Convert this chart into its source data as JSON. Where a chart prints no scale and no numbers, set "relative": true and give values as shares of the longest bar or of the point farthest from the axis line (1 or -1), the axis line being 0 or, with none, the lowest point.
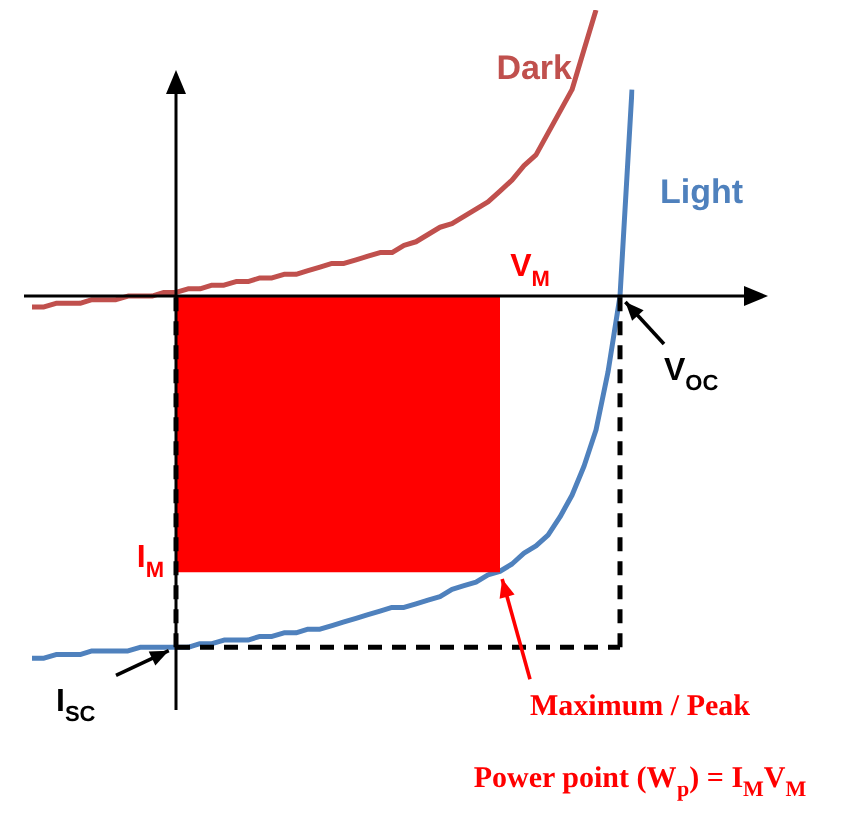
{
  "chart_data": {
    "type": "line",
    "relative": true,
    "legend": false,
    "marker": "none",
    "categories": [
      null,
      null,
      null,
      null,
      null,
      null,
      null,
      null,
      null,
      null,
      null,
      null,
      null,
      null,
      null,
      null,
      null,
      null,
      null,
      null,
      null,
      null,
      null,
      null,
      null,
      null,
      null,
      null,
      null,
      null,
      null,
      null,
      null,
      null,
      null,
      null,
      null,
      null,
      null,
      null,
      null,
      null,
      null,
      null,
      null,
      null,
      null,
      null,
      null,
      null,
      null
    ],
    "series": [
      {
        "name": "Dark",
        "color": "#c0504d",
        "values": [
          -0.03,
          -0.03,
          -0.02,
          -0.02,
          -0.02,
          -0.01,
          -0.01,
          -0.01,
          0,
          0,
          0,
          0.01,
          0.01,
          0.02,
          0.02,
          0.03,
          0.03,
          0.04,
          0.04,
          0.05,
          0.05,
          0.06,
          0.06,
          0.07,
          0.08,
          0.09,
          0.09,
          0.1,
          0.11,
          0.12,
          0.12,
          0.14,
          0.15,
          0.17,
          0.19,
          0.2,
          0.22,
          0.24,
          0.26,
          0.29,
          0.32,
          0.36,
          0.39,
          0.45,
          0.51,
          0.57,
          0.68,
          0.79,
          null,
          null,
          null
        ]
      },
      {
        "name": "Light",
        "color": "#4f81bd",
        "values": [
          -1,
          -1,
          -0.99,
          -0.99,
          -0.99,
          -0.98,
          -0.98,
          -0.98,
          -0.98,
          -0.97,
          -0.97,
          -0.97,
          -0.97,
          -0.97,
          -0.96,
          -0.96,
          -0.95,
          -0.95,
          -0.95,
          -0.94,
          -0.94,
          -0.93,
          -0.93,
          -0.92,
          -0.92,
          -0.91,
          -0.9,
          -0.89,
          -0.88,
          -0.87,
          -0.86,
          -0.86,
          -0.85,
          -0.84,
          -0.83,
          -0.81,
          -0.8,
          -0.79,
          -0.77,
          -0.76,
          -0.74,
          -0.71,
          -0.69,
          -0.66,
          -0.61,
          -0.55,
          -0.47,
          -0.37,
          -0.21,
          0,
          0.57
        ]
      },
      {
        "type": "area",
        "color": "#ff0000",
        "values": [
          null,
          null,
          null,
          null,
          null,
          null,
          null,
          null,
          null,
          null,
          null,
          null,
          -0.76,
          -0.76,
          -0.76,
          -0.76,
          -0.76,
          -0.76,
          -0.76,
          -0.76,
          -0.76,
          -0.76,
          -0.76,
          -0.76,
          -0.76,
          -0.76,
          -0.76,
          -0.76,
          -0.76,
          -0.76,
          -0.76,
          -0.76,
          -0.76,
          -0.76,
          -0.76,
          -0.76,
          -0.76,
          -0.76,
          -0.76,
          -0.76,
          null,
          null,
          null,
          null,
          null,
          null,
          null,
          null,
          null,
          null,
          null
        ]
      },
      {
        "color": "#000000",
        "line_style": "dashed",
        "values": [
          null,
          null,
          null,
          null,
          null,
          null,
          null,
          null,
          null,
          null,
          null,
          null,
          -0.97,
          -0.97,
          -0.97,
          -0.97,
          -0.97,
          -0.97,
          -0.97,
          -0.97,
          -0.97,
          -0.97,
          -0.97,
          -0.97,
          -0.97,
          -0.97,
          -0.97,
          -0.97,
          -0.97,
          -0.97,
          -0.97,
          -0.97,
          -0.97,
          -0.97,
          -0.97,
          -0.97,
          -0.97,
          -0.97,
          -0.97,
          -0.97,
          -0.97,
          -0.97,
          -0.97,
          -0.97,
          -0.97,
          -0.97,
          -0.97,
          -0.97,
          -0.97,
          -0.97,
          null
        ]
      }
    ],
    "annotations": [
      "V$_{M}$",
      "I$_{M}$",
      "V$_{OC}$",
      "I$_{SC}$",
      "Maximum / Peak\nPower point (W$_{p}$) = I$_{M}$V$_{M}$"
    ]
  }
}
